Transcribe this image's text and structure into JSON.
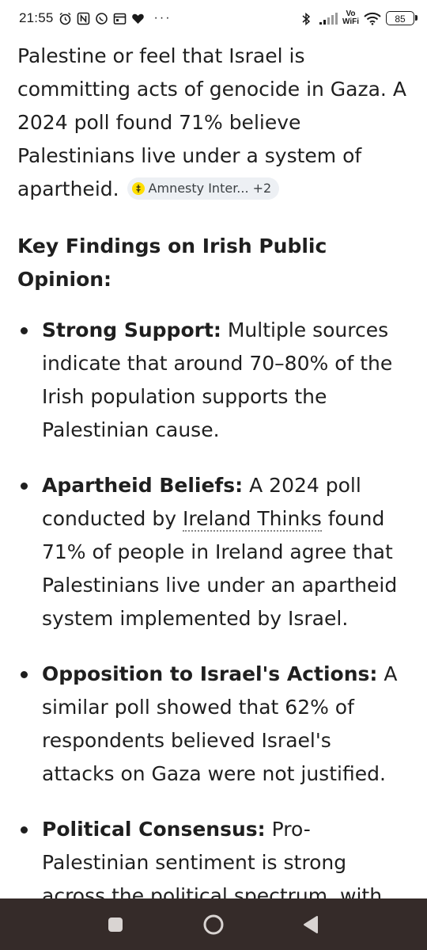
{
  "status_bar": {
    "time": "21:55",
    "dots": "···",
    "volte_top": "Vo",
    "volte_bottom": "WiFi",
    "battery": "85",
    "icons": [
      "alarm-icon",
      "nfc-icon",
      "whatsapp-icon",
      "calendar-icon",
      "heart-icon",
      "bluetooth-icon",
      "signal-icon",
      "wifi-icon",
      "battery-icon"
    ]
  },
  "article": {
    "intro_text": "Palestine or feel that Israel is committing acts of genocide in Gaza. A 2024 poll found 71% believe Palestinians live under a system of apartheid.",
    "source_chip": {
      "label": "Amnesty Inter... +2",
      "icon": "amnesty-logo-icon",
      "color": "#ffde00"
    },
    "heading": "Key Findings on Irish Public Opinion:",
    "findings": [
      {
        "title": "Strong Support:",
        "text": " Multiple sources indicate that around 70–80% of the Irish population supports the Palestinian cause."
      },
      {
        "title": "Apartheid Beliefs:",
        "text_before": " A 2024 poll conducted by ",
        "link": "Ireland Thinks",
        "text_after": " found 71% of people in Ireland agree that Palestinians live under an apartheid system implemented by Israel."
      },
      {
        "title": "Opposition to Israel's Actions:",
        "text": " A similar poll showed that 62% of respondents believed Israel's attacks on Gaza were not justified."
      },
      {
        "title": "Political Consensus:",
        "text": " Pro-Palestinian sentiment is strong across the political spectrum, with"
      }
    ]
  },
  "nav_bar": {
    "buttons": [
      "recent-apps-button",
      "home-button",
      "back-button"
    ],
    "background": "#352b29"
  }
}
